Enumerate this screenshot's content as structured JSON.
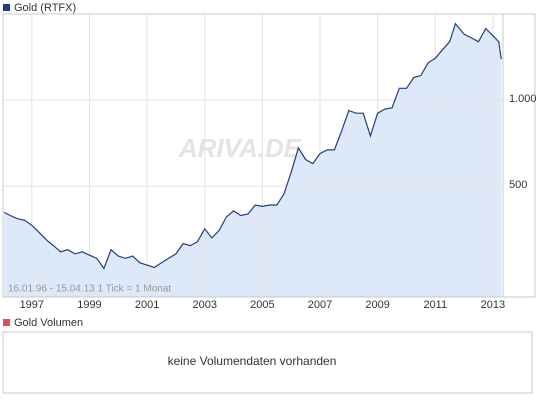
{
  "chart_data": {
    "type": "line",
    "title": "Gold (RTFX)",
    "subtitle": "16.01.96 - 15.04.13   1 Tick = 1 Monat",
    "watermark": "ARIVA.DE",
    "log_scale": true,
    "grid": true,
    "x": [
      1996.04,
      1996.25,
      1996.5,
      1996.75,
      1997.0,
      1997.25,
      1997.5,
      1997.75,
      1998.0,
      1998.25,
      1998.5,
      1998.75,
      1999.0,
      1999.25,
      1999.5,
      1999.75,
      2000.0,
      2000.25,
      2000.5,
      2000.75,
      2001.0,
      2001.25,
      2001.5,
      2001.75,
      2002.0,
      2002.25,
      2002.5,
      2002.75,
      2003.0,
      2003.25,
      2003.5,
      2003.75,
      2004.0,
      2004.25,
      2004.5,
      2004.75,
      2005.0,
      2005.25,
      2005.5,
      2005.75,
      2006.0,
      2006.25,
      2006.5,
      2006.75,
      2007.0,
      2007.25,
      2007.5,
      2007.75,
      2008.0,
      2008.25,
      2008.5,
      2008.75,
      2009.0,
      2009.25,
      2009.5,
      2009.75,
      2010.0,
      2010.25,
      2010.5,
      2010.75,
      2011.0,
      2011.25,
      2011.5,
      2011.7,
      2012.0,
      2012.25,
      2012.5,
      2012.75,
      2013.0,
      2013.2,
      2013.29
    ],
    "series": [
      {
        "name": "Gold (RTFX)",
        "color": "#1f3f7f",
        "fill": "#dde8f8",
        "values": [
          405,
          395,
          385,
          380,
          365,
          345,
          325,
          310,
          295,
          300,
          290,
          295,
          287,
          280,
          258,
          300,
          285,
          280,
          285,
          270,
          265,
          260,
          270,
          280,
          290,
          315,
          310,
          320,
          355,
          330,
          350,
          390,
          410,
          395,
          400,
          430,
          425,
          430,
          430,
          470,
          560,
          680,
          620,
          600,
          650,
          670,
          670,
          780,
          920,
          900,
          900,
          750,
          900,
          930,
          940,
          1100,
          1100,
          1200,
          1220,
          1350,
          1400,
          1500,
          1600,
          1850,
          1700,
          1650,
          1600,
          1780,
          1680,
          1600,
          1390
        ]
      }
    ],
    "xlim": [
      1996.0,
      2013.35
    ],
    "xticks": [
      1997,
      1999,
      2001,
      2003,
      2005,
      2007,
      2009,
      2011,
      2013
    ],
    "ylim": [
      205,
      2000
    ],
    "yticks": [
      500,
      {
        "value": 1000,
        "label": "1.000"
      }
    ]
  },
  "volume_panel": {
    "title": "Gold Volumen",
    "color": "#d9534f",
    "message": "keine Volumendaten vorhanden"
  }
}
